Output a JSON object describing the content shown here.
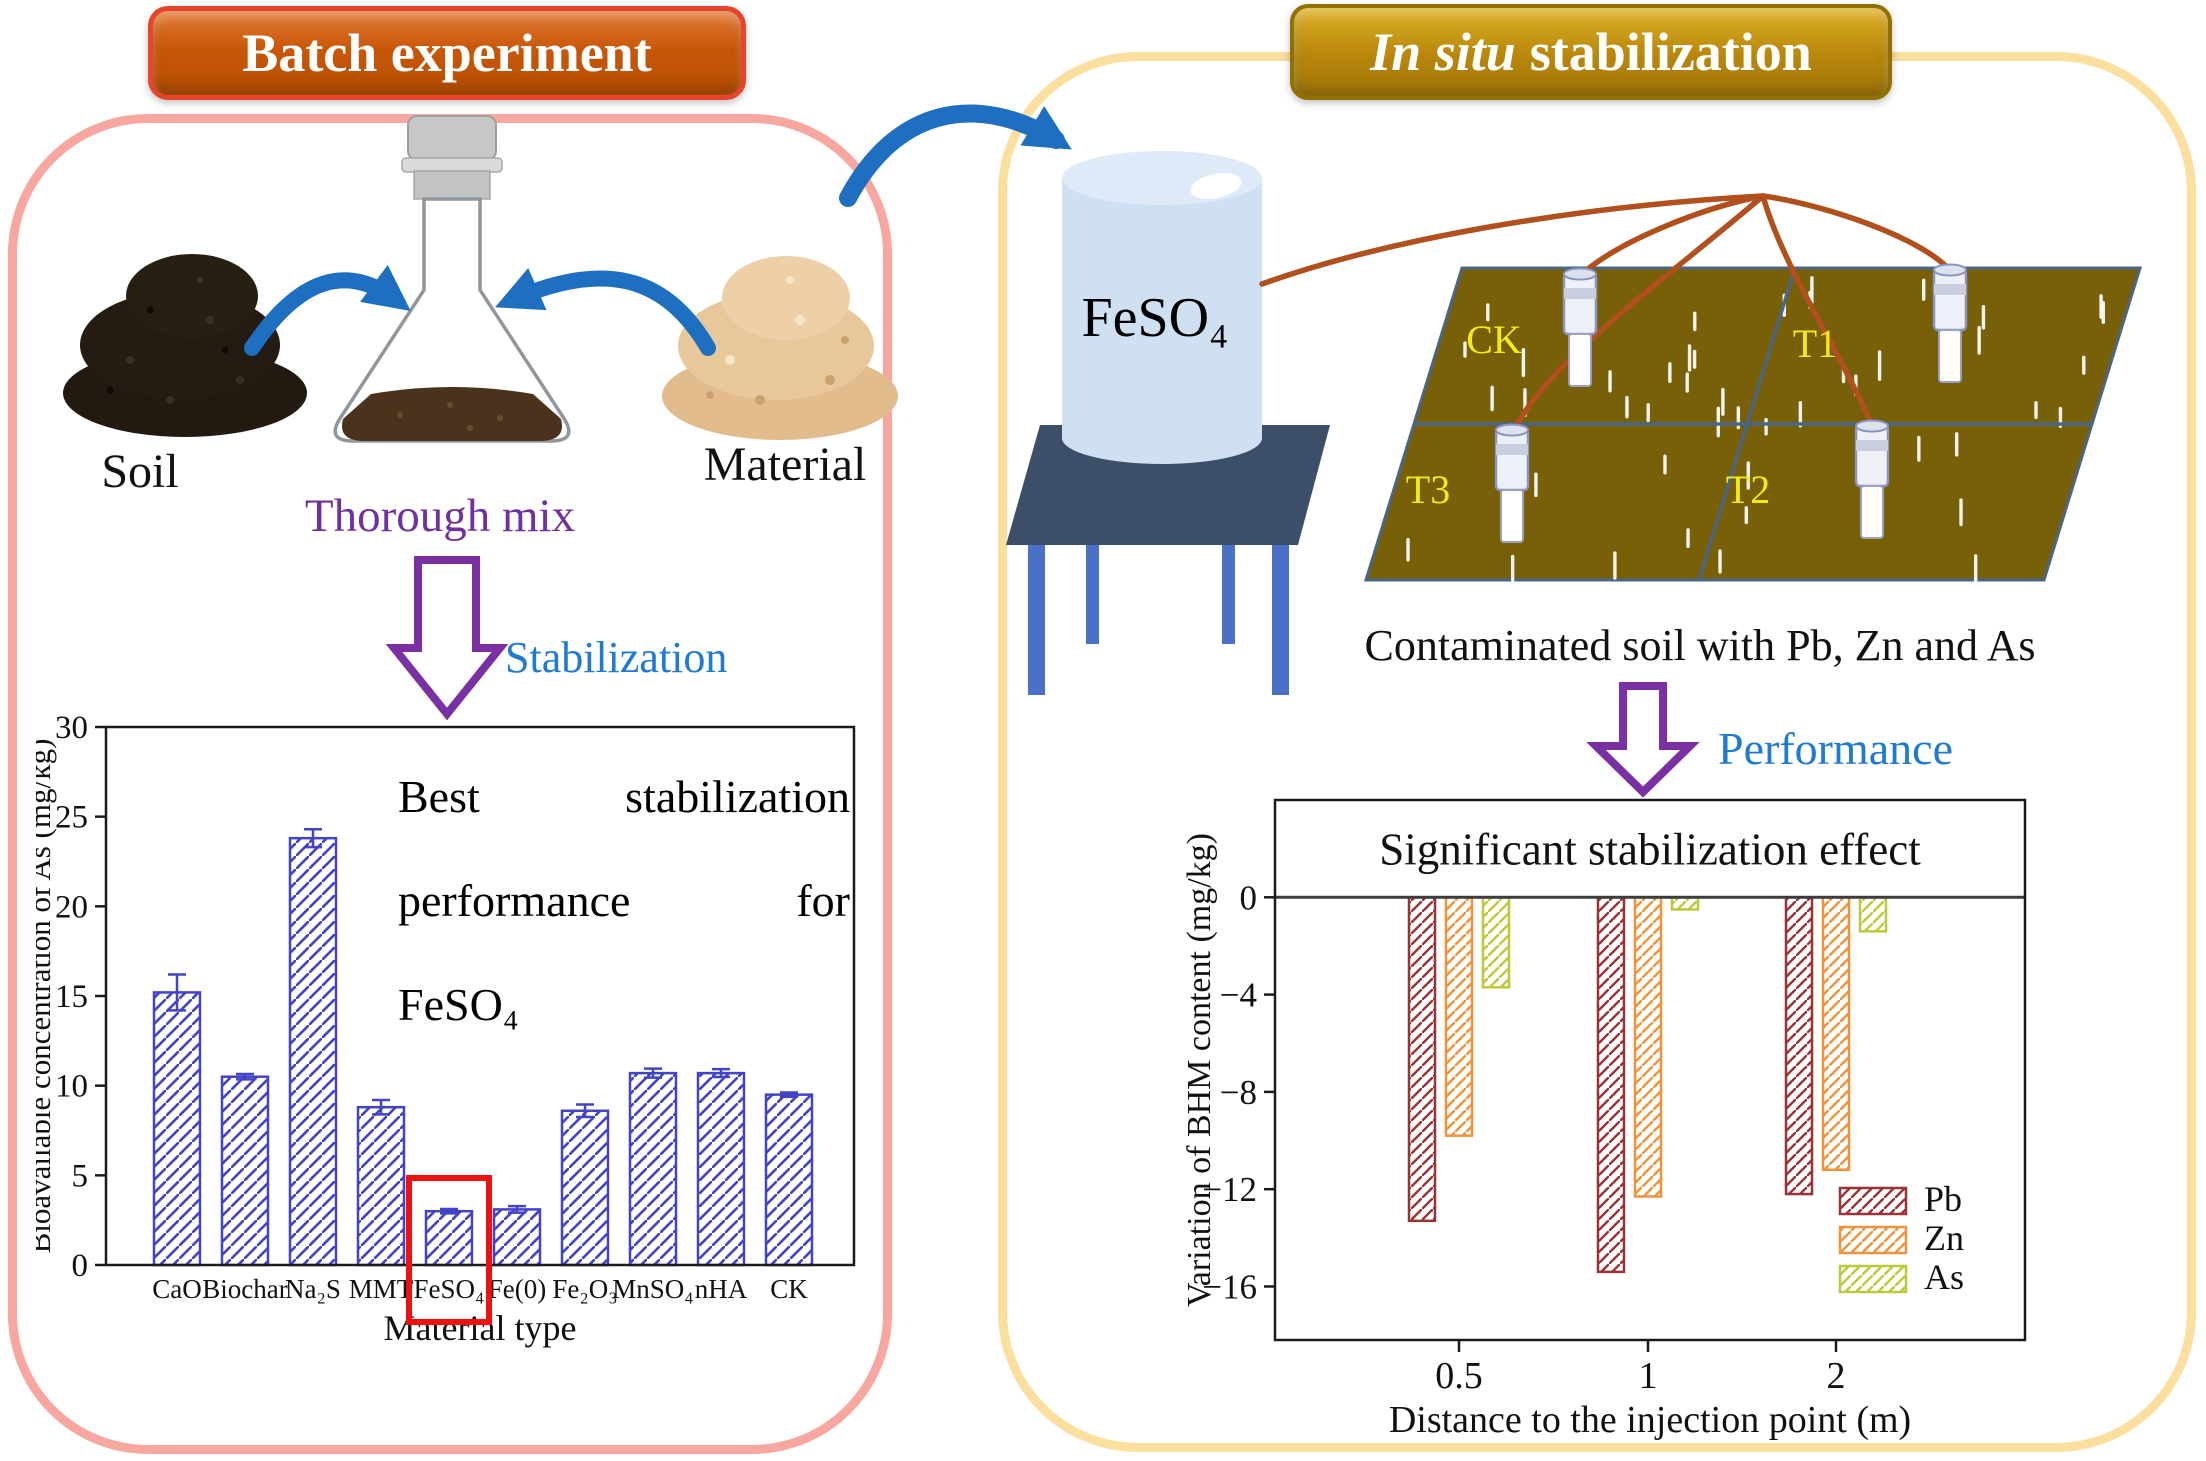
{
  "left_panel": {
    "title": "Batch experiment",
    "soil_label": "Soil",
    "material_label": "Material",
    "mix_label": "Thorough mix",
    "flow_label": "Stabilization"
  },
  "right_panel": {
    "title_italic": "In situ",
    "title_rest": "stabilization",
    "container_label": "FeSO₄",
    "field_labels": {
      "ck": "CK",
      "t1": "T1",
      "t3": "T3",
      "t2": "T2"
    },
    "caption": "Contaminated soil with Pb, Zn and As",
    "flow_label": "Performance"
  },
  "chart_data": [
    {
      "type": "bar",
      "panel": "left",
      "title": "",
      "categories": [
        "CaO",
        "Biochar",
        "Na₂S",
        "MMT",
        "FeSO₄",
        "Fe(0)",
        "Fe₂O₃",
        "MnSO₄",
        "nHA",
        "CK"
      ],
      "values": [
        15.2,
        10.5,
        23.8,
        8.8,
        3.0,
        3.1,
        8.6,
        10.7,
        10.7,
        9.5
      ],
      "errors": [
        1.0,
        0.15,
        0.5,
        0.4,
        0.12,
        0.18,
        0.35,
        0.25,
        0.22,
        0.12
      ],
      "xlabel": "Material type",
      "ylabel": "Bioavailable concentration of As (mg/kg)",
      "ylim": [
        0,
        30
      ],
      "yticks": [
        0,
        5,
        10,
        15,
        20,
        25,
        30
      ],
      "bar_color": "#4343c8",
      "highlight_category": "FeSO₄",
      "highlight_color": "#ee1111",
      "annotation_lines": [
        "Best stabilization",
        "performance for",
        "FeSO₄"
      ],
      "grid": false,
      "legend_position": "none"
    },
    {
      "type": "bar",
      "panel": "right",
      "title": "Significant stabilization effect",
      "categories": [
        "0.5",
        "1",
        "2"
      ],
      "series": [
        {
          "name": "Pb",
          "color": "#9a3334",
          "values": [
            -13.3,
            -15.4,
            -12.2
          ]
        },
        {
          "name": "Zn",
          "color": "#f2923a",
          "values": [
            -9.8,
            -12.3,
            -11.2
          ]
        },
        {
          "name": "As",
          "color": "#bdc93a",
          "values": [
            -3.7,
            -0.5,
            -1.4
          ]
        }
      ],
      "xlabel": "Distance to the injection point (m)",
      "ylabel": "Variation of BHM content (mg/kg)",
      "ylim": [
        4,
        -18.2
      ],
      "yticks": [
        0,
        -4,
        -8,
        -12,
        -16
      ],
      "legend_position": "lower right",
      "grid": false
    }
  ],
  "colors": {
    "panel_left_border": "#f7a6a0",
    "panel_right_border": "#fbdf9f",
    "batch_box_border": "#e8432b",
    "mix_text": "#7030a0",
    "flow_text": "#1f7ad4",
    "purple_arrow": "#7a2fa3",
    "blue_arrow": "#1e6fc0",
    "field_label": "#f0ec1a",
    "field_fill": "#776008",
    "tube": "#b14f1d"
  }
}
